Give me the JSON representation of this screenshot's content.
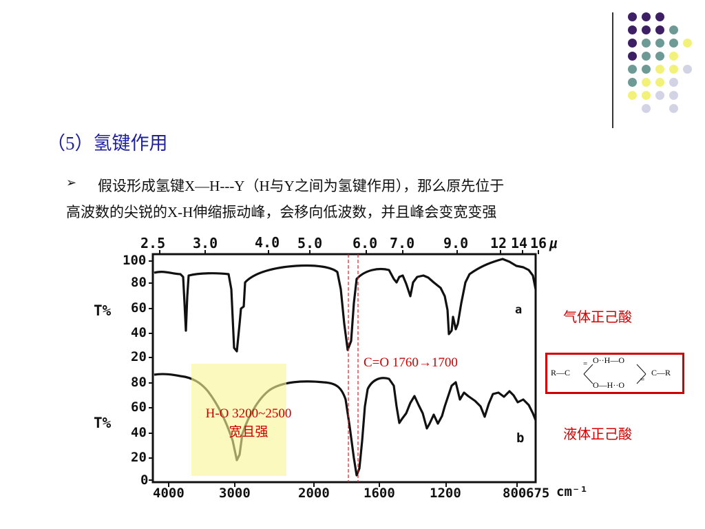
{
  "slide": {
    "title": "（5）氢键作用",
    "bullet_symbol": "➢",
    "bullet_line1": "假设形成氢键X—H---Y（H与Y之间为氢键作用），那么原先位于",
    "bullet_line2": "高波数的尖锐的X-H伸缩振动峰，会移向低波数，并且峰会变宽变强"
  },
  "annotations": {
    "oh_label_1": "H-O 3200~2500",
    "oh_label_2": "宽且强",
    "co_label": "C=O 1760→1700",
    "gas_label": "气体正己酸",
    "liquid_label": "液体正己酸"
  },
  "structure": {
    "left_group": "R—C",
    "right_group": "C—R",
    "top_row": "O··H—O",
    "bottom_row": "O—H··O",
    "top_dbl": "=",
    "bottom_dbl": "="
  },
  "spectrum": {
    "top_axis_labels": [
      "2.5",
      "3.0",
      "4.0",
      "5.0",
      "6.0",
      "7.0",
      "9.0",
      "12",
      "14",
      "16",
      "μ"
    ],
    "bottom_axis_labels": [
      "4000",
      "3000",
      "2000",
      "1600",
      "1200",
      "800",
      "675",
      "cm⁻¹"
    ],
    "y_labels_a": [
      "100",
      "80",
      "60",
      "40",
      "20"
    ],
    "y_labels_b": [
      "80",
      "60",
      "40",
      "20",
      "0"
    ],
    "y_title_a": "T%",
    "y_title_b": "T%",
    "trace_a_label": "a",
    "trace_b_label": "b"
  },
  "colors": {
    "title": "#1f22a0",
    "annotation_red": "#cc0000",
    "highlight": "#faf596",
    "dot_purple": "#3d1f66",
    "dot_teal": "#6e9a95",
    "dot_yellow": "#f2f27a",
    "dot_lavender": "#d3d3e6"
  }
}
